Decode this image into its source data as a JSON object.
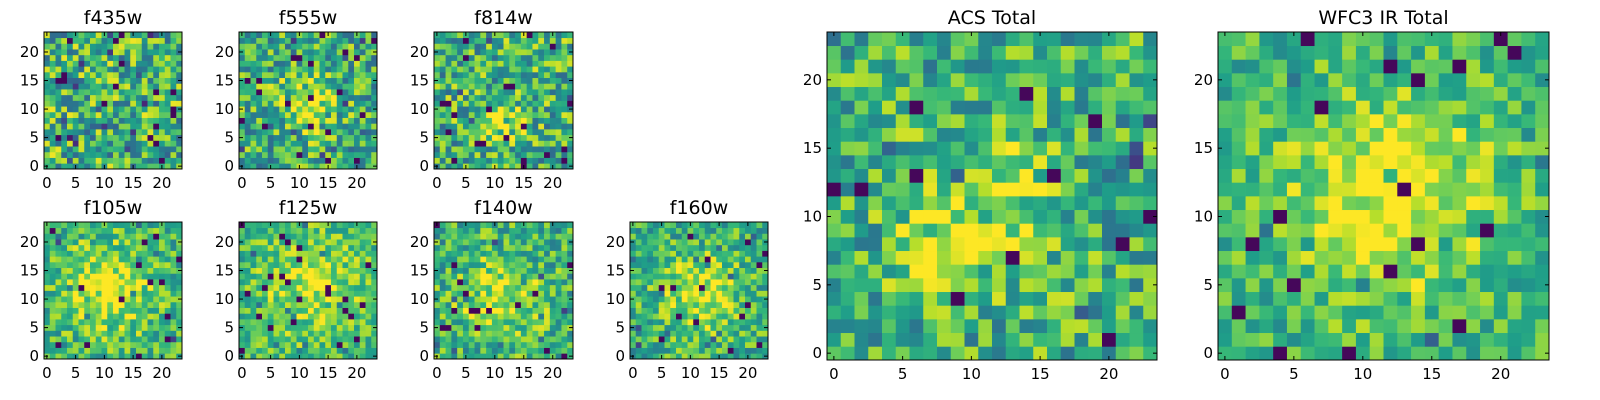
{
  "chart_data": [
    {
      "type": "heatmap",
      "title": "f435w",
      "grid_size": 24,
      "colormap": "viridis",
      "xticks": [
        0,
        5,
        10,
        15,
        20
      ],
      "yticks": [
        0,
        5,
        10,
        15,
        20
      ],
      "xlim": [
        -0.5,
        23.5
      ],
      "ylim": [
        -0.5,
        23.5
      ]
    },
    {
      "type": "heatmap",
      "title": "f555w",
      "grid_size": 24,
      "colormap": "viridis",
      "xticks": [
        0,
        5,
        10,
        15,
        20
      ],
      "yticks": [
        0,
        5,
        10,
        15,
        20
      ],
      "xlim": [
        -0.5,
        23.5
      ],
      "ylim": [
        -0.5,
        23.5
      ]
    },
    {
      "type": "heatmap",
      "title": "f814w",
      "grid_size": 24,
      "colormap": "viridis",
      "xticks": [
        0,
        5,
        10,
        15,
        20
      ],
      "yticks": [
        0,
        5,
        10,
        15,
        20
      ],
      "xlim": [
        -0.5,
        23.5
      ],
      "ylim": [
        -0.5,
        23.5
      ]
    },
    {
      "type": "heatmap",
      "title": "f105w",
      "grid_size": 24,
      "colormap": "viridis",
      "xticks": [
        0,
        5,
        10,
        15,
        20
      ],
      "yticks": [
        0,
        5,
        10,
        15,
        20
      ],
      "xlim": [
        -0.5,
        23.5
      ],
      "ylim": [
        -0.5,
        23.5
      ]
    },
    {
      "type": "heatmap",
      "title": "f125w",
      "grid_size": 24,
      "colormap": "viridis",
      "xticks": [
        0,
        5,
        10,
        15,
        20
      ],
      "yticks": [
        0,
        5,
        10,
        15,
        20
      ],
      "xlim": [
        -0.5,
        23.5
      ],
      "ylim": [
        -0.5,
        23.5
      ]
    },
    {
      "type": "heatmap",
      "title": "f140w",
      "grid_size": 24,
      "colormap": "viridis",
      "xticks": [
        0,
        5,
        10,
        15,
        20
      ],
      "yticks": [
        0,
        5,
        10,
        15,
        20
      ],
      "xlim": [
        -0.5,
        23.5
      ],
      "ylim": [
        -0.5,
        23.5
      ]
    },
    {
      "type": "heatmap",
      "title": "f160w",
      "grid_size": 24,
      "colormap": "viridis",
      "xticks": [
        0,
        5,
        10,
        15,
        20
      ],
      "yticks": [
        0,
        5,
        10,
        15,
        20
      ],
      "xlim": [
        -0.5,
        23.5
      ],
      "ylim": [
        -0.5,
        23.5
      ]
    },
    {
      "type": "heatmap",
      "title": "ACS Total",
      "grid_size": 24,
      "colormap": "viridis",
      "xticks": [
        0,
        5,
        10,
        15,
        20
      ],
      "yticks": [
        0,
        5,
        10,
        15,
        20
      ],
      "xlim": [
        -0.5,
        23.5
      ],
      "ylim": [
        -0.5,
        23.5
      ]
    },
    {
      "type": "heatmap",
      "title": "WFC3 IR Total",
      "grid_size": 24,
      "colormap": "viridis",
      "xticks": [
        0,
        5,
        10,
        15,
        20
      ],
      "yticks": [
        0,
        5,
        10,
        15,
        20
      ],
      "xlim": [
        -0.5,
        23.5
      ],
      "ylim": [
        -0.5,
        23.5
      ]
    }
  ]
}
